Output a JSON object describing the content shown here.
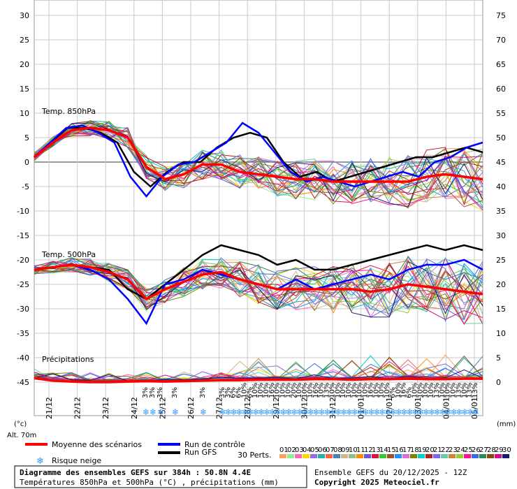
{
  "chart_data": {
    "type": "line",
    "x_dates": [
      "21/12",
      "22/12",
      "23/12",
      "24/12",
      "25/12",
      "26/12",
      "27/12",
      "28/12",
      "29/12",
      "30/12",
      "31/12",
      "01/01",
      "02/01",
      "03/01",
      "04/01",
      "05/01"
    ],
    "left_axis": {
      "unit": "(°c)",
      "ticks": [
        30,
        25,
        20,
        15,
        10,
        5,
        0,
        -5,
        -10,
        -15,
        -20,
        -25,
        -30,
        -35,
        -40,
        -45
      ],
      "range": [
        -45,
        30
      ]
    },
    "right_axis": {
      "unit": "(mm)",
      "ticks": [
        75,
        70,
        65,
        60,
        55,
        50,
        45,
        40,
        35,
        30,
        25,
        20,
        15,
        10,
        5,
        0
      ],
      "range": [
        0,
        75
      ]
    },
    "labels": {
      "t850": "Temp. 850hPa",
      "t500": "Temp. 500hPa",
      "precip": "Précipitations",
      "altitude": "Alt. 70m"
    },
    "snow_risk_pct": [
      "3%",
      "3%",
      "3%",
      "3%",
      "3%",
      "3%",
      "3%",
      "6%",
      "6%",
      "10%",
      "6%",
      "10%",
      "10%",
      "10%",
      "16%",
      "10%",
      "10%",
      "10%",
      "20%",
      "10%",
      "10%",
      "10%",
      "16%",
      "10%",
      "13%",
      "10%",
      "10%",
      "10%",
      "10%",
      "10%",
      "10%",
      "10%",
      "16%",
      "10%",
      "10%",
      "10%",
      "6%",
      "10%",
      "16%",
      "6%",
      "10%",
      "10%",
      "10%",
      "10%",
      "13%",
      "10%",
      "10%",
      "10%",
      "13%",
      "10%",
      "13%",
      "13%"
    ],
    "series": [
      {
        "name": "Moyenne des scénarios",
        "color": "#ff0000"
      },
      {
        "name": "Run de contrôle",
        "color": "#0000ff"
      },
      {
        "name": "Run GFS",
        "color": "#000000"
      }
    ],
    "t850_mean": [
      1,
      4,
      6.5,
      7,
      6.5,
      5,
      -1,
      -3.5,
      -2.5,
      -0.5,
      -0.5,
      -2,
      -2.5,
      -3,
      -3.5,
      -3.5,
      -4,
      -4,
      -4,
      -4,
      -4,
      -3,
      -2.5,
      -3,
      -3.5
    ],
    "t850_control": [
      1,
      4,
      7,
      7.5,
      6,
      4,
      -3,
      -7,
      -3,
      -0.5,
      0,
      2,
      4,
      8,
      6,
      2,
      -2,
      -4,
      -3,
      -4,
      -5,
      -4,
      -3,
      -2,
      -3,
      0,
      1,
      3,
      4
    ],
    "t850_gfs": [
      1,
      4,
      7,
      7,
      6,
      4,
      -2,
      -5,
      -2,
      0,
      0,
      3,
      5,
      6,
      5,
      0,
      -3,
      -2,
      -4,
      -3,
      -2,
      -1,
      0,
      1,
      1,
      2,
      3,
      2
    ],
    "t500_mean": [
      -22,
      -21.5,
      -21,
      -21.5,
      -22.5,
      -24,
      -28,
      -26,
      -24.5,
      -23,
      -22.5,
      -24,
      -25,
      -26,
      -26,
      -26,
      -26,
      -26,
      -26.5,
      -26,
      -25,
      -25.5,
      -26,
      -26.5,
      -27
    ],
    "t500_control": [
      -22,
      -21.5,
      -21,
      -22,
      -24,
      -28,
      -33,
      -25,
      -24,
      -22,
      -23,
      -24,
      -25,
      -26,
      -24,
      -26,
      -25,
      -24,
      -23,
      -24,
      -22,
      -21,
      -21,
      -20,
      -22
    ],
    "t500_gfs": [
      -22,
      -21.5,
      -21,
      -21.5,
      -22,
      -26,
      -28,
      -25,
      -22,
      -19,
      -17,
      -18,
      -19,
      -21,
      -20,
      -22,
      -22,
      -21,
      -20,
      -19,
      -18,
      -17,
      -18,
      -17,
      -18
    ],
    "precip_mean": [
      0.8,
      0.3,
      0.1,
      0,
      0,
      0.1,
      0.2,
      0.1,
      0.2,
      0.3,
      0.4,
      0.4,
      0.5,
      0.5,
      0.5,
      0.6,
      0.6,
      0.5,
      0.6,
      0.6,
      0.7,
      0.6,
      0.6,
      0.7,
      0.7
    ]
  },
  "legend": {
    "mean": "Moyenne des scénarios",
    "control": "Run de contrôle",
    "gfs": "Run GFS",
    "snow": "Risque neige",
    "perts": "30 Perts.",
    "pert_numbers": [
      "01",
      "02",
      "03",
      "04",
      "05",
      "06",
      "07",
      "08",
      "09",
      "10",
      "11",
      "12",
      "13",
      "14",
      "15",
      "16",
      "17",
      "18",
      "19",
      "20",
      "21",
      "22",
      "23",
      "24",
      "25",
      "26",
      "27",
      "28",
      "29",
      "30"
    ],
    "pert_colors": [
      "#f4a460",
      "#90ee90",
      "#ff69b4",
      "#ffd700",
      "#9370db",
      "#20b2aa",
      "#ff6347",
      "#4682b4",
      "#d2b48c",
      "#8fbc8f",
      "#ff8c00",
      "#6a5acd",
      "#dc143c",
      "#32cd32",
      "#a0522d",
      "#1e90ff",
      "#da70d6",
      "#808000",
      "#00ced1",
      "#b22222",
      "#7b68ee",
      "#66cdaa",
      "#cd853f",
      "#9acd32",
      "#ff1493",
      "#4169e1",
      "#2e8b57",
      "#8b4513",
      "#c71585",
      "#191970"
    ]
  },
  "footer": {
    "title": "Diagramme des ensembles GEFS sur 384h : 50.8N 4.4E",
    "subtitle": "Températures 850hPa et 500hPa (°C) , précipitations (mm)",
    "run": "Ensemble GEFS du 20/12/2025 - 12Z",
    "copyright": "Copyright 2025 Meteociel.fr"
  }
}
